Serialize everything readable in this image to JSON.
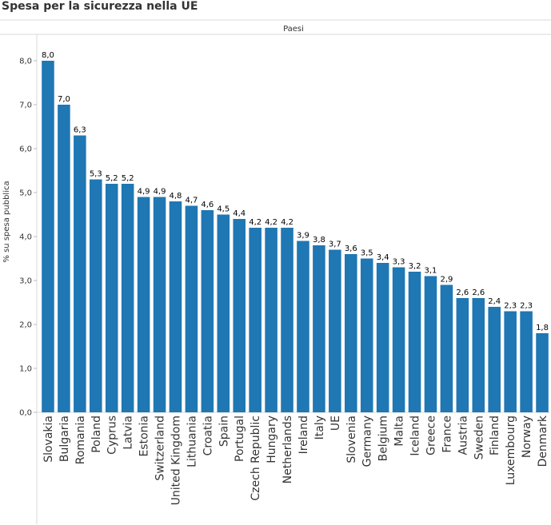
{
  "chart_data": {
    "type": "bar",
    "title": "Spesa per la sicurezza nella UE",
    "column_header": "Paesi",
    "xlabel": "",
    "ylabel": "% su spesa pubblica",
    "ylim": [
      0,
      8.6
    ],
    "y_ticks": [
      0,
      1,
      2,
      3,
      4,
      5,
      6,
      7,
      8
    ],
    "y_tick_labels": [
      "0,0",
      "1,0",
      "2,0",
      "3,0",
      "4,0",
      "5,0",
      "6,0",
      "7,0",
      "8,0"
    ],
    "grid": false,
    "bar_color": "#1f77b4",
    "categories": [
      "Slovakia",
      "Bulgaria",
      "Romania",
      "Poland",
      "Cyprus",
      "Latvia",
      "Estonia",
      "Switzerland",
      "United Kingdom",
      "Lithuania",
      "Croatia",
      "Spain",
      "Portugal",
      "Czech Republic",
      "Hungary",
      "Netherlands",
      "Ireland",
      "Italy",
      "UE",
      "Slovenia",
      "Germany",
      "Belgium",
      "Malta",
      "Iceland",
      "Greece",
      "France",
      "Austria",
      "Sweden",
      "Finland",
      "Luxembourg",
      "Norway",
      "Denmark"
    ],
    "values": [
      8.0,
      7.0,
      6.3,
      5.3,
      5.2,
      5.2,
      4.9,
      4.9,
      4.8,
      4.7,
      4.6,
      4.5,
      4.4,
      4.2,
      4.2,
      4.2,
      3.9,
      3.8,
      3.7,
      3.6,
      3.5,
      3.4,
      3.3,
      3.2,
      3.1,
      2.9,
      2.6,
      2.6,
      2.4,
      2.3,
      2.3,
      1.8
    ],
    "value_labels": [
      "8,0",
      "7,0",
      "6,3",
      "5,3",
      "5,2",
      "5,2",
      "4,9",
      "4,9",
      "4,8",
      "4,7",
      "4,6",
      "4,5",
      "4,4",
      "4,2",
      "4,2",
      "4,2",
      "3,9",
      "3,8",
      "3,7",
      "3,6",
      "3,5",
      "3,4",
      "3,3",
      "3,2",
      "3,1",
      "2,9",
      "2,6",
      "2,6",
      "2,4",
      "2,3",
      "2,3",
      "1,8"
    ]
  }
}
